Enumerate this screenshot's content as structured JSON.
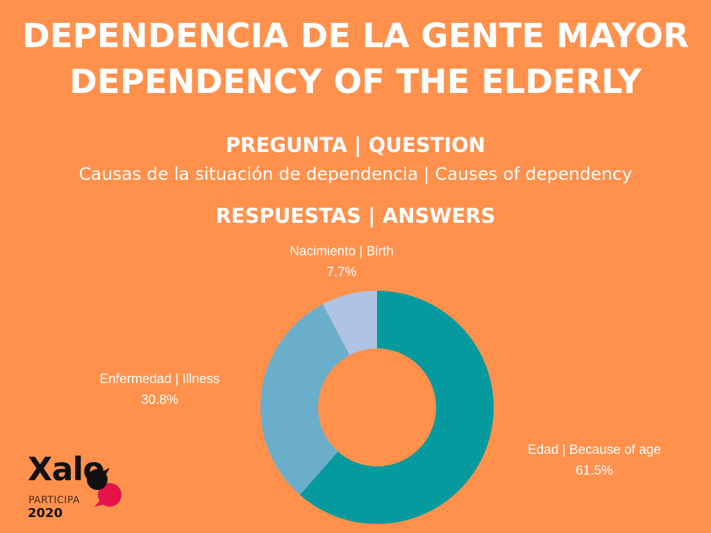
{
  "header": {
    "title_es": "DEPENDENCIA DE LA GENTE MAYOR",
    "title_en": "DEPENDENCY OF THE ELDERLY",
    "question_heading": "PREGUNTA | QUESTION",
    "question": "Causas de la situación de dependencia | Causes of dependency",
    "answers_heading": "RESPUESTAS | ANSWERS"
  },
  "logo": {
    "name": "Xalo",
    "sub": "PARTICIPA",
    "year": "2020"
  },
  "chart_data": {
    "type": "pie",
    "donut": true,
    "categories": [
      "Edad | Because of age",
      "Enfermedad | Illness",
      "Nacimiento | Birth"
    ],
    "values": [
      61.5,
      30.8,
      7.7
    ],
    "value_labels": [
      "61.5%",
      "30.8%",
      "7.7%"
    ],
    "colors": [
      "#069A9E",
      "#6AAECB",
      "#AFC3E3"
    ],
    "start": "top",
    "direction": "clockwise"
  }
}
